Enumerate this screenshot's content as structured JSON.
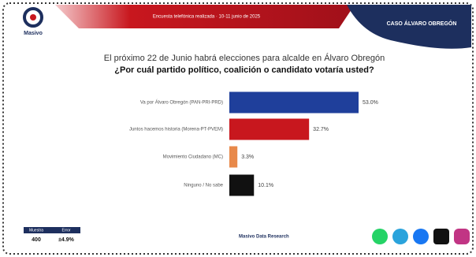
{
  "chart_data": {
    "type": "bar",
    "orientation": "horizontal",
    "brand": "Masivo",
    "banner": "Encuesta telefónica realizada · 10-11 junio de 2025",
    "case_label": "CASO ÁLVARO OBREGÓN",
    "title": "El próximo 22 de Junio habrá elecciones para alcalde en Álvaro Obregón",
    "subtitle": "¿Por cuál partido político, coalición o candidato votaría usted?",
    "categories": [
      "Va por Álvaro Obregón (PAN-PRI-PRD)",
      "Juntos hacemos historia (Morena-PT-PVEM)",
      "Movimiento Ciudadano (MC)",
      "Ninguno / No sabe"
    ],
    "values": [
      53.0,
      32.7,
      3.3,
      10.1
    ],
    "value_labels": [
      "53.0%",
      "32.7%",
      "3.3%",
      "10.1%"
    ],
    "colors": [
      "#1f3f9b",
      "#c8171e",
      "#e8894a",
      "#111111"
    ],
    "footer_table": {
      "headers": [
        "Muestra",
        "Error"
      ],
      "values": [
        "400",
        "±4.9%"
      ]
    },
    "footer_source": "Masivo Data Research"
  }
}
